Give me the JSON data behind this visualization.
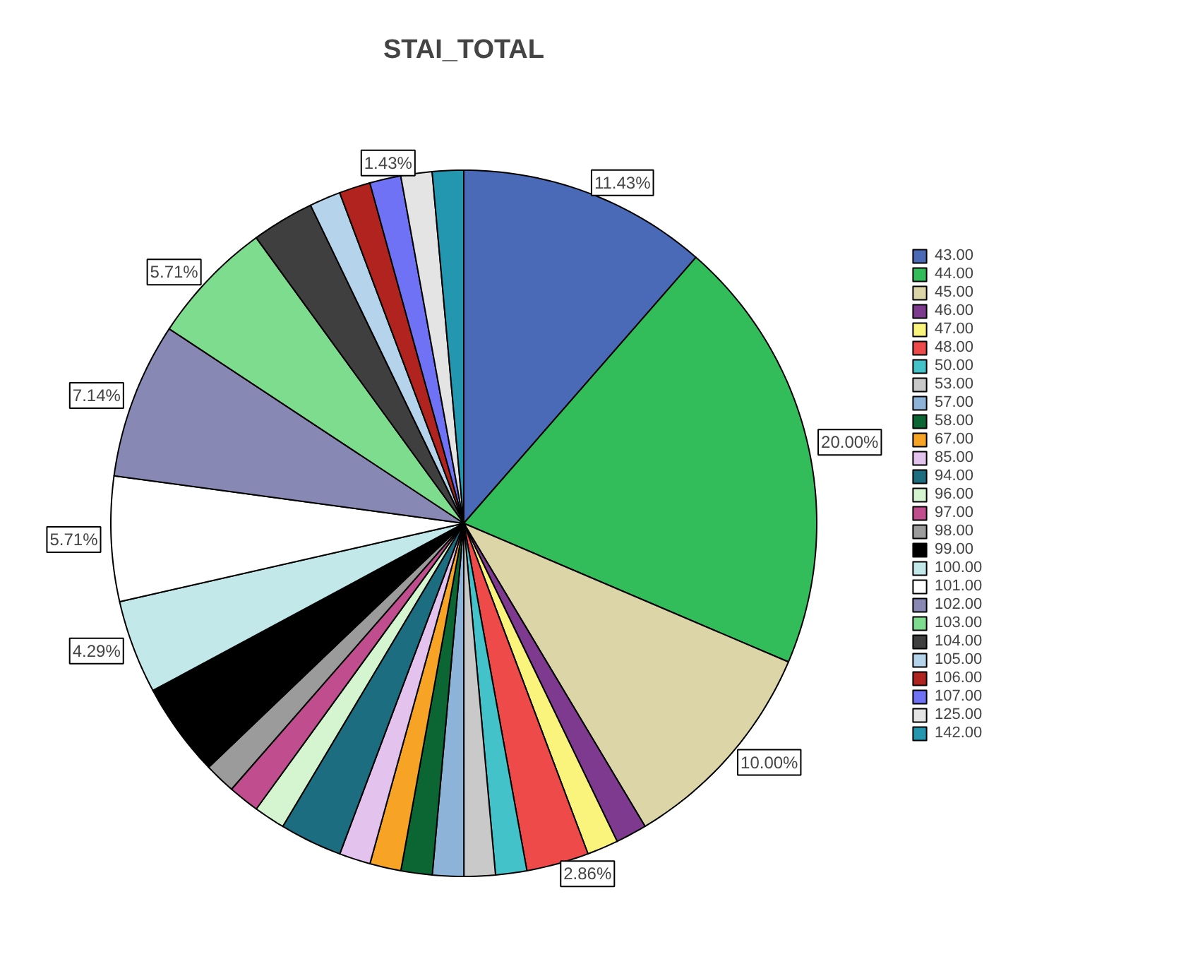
{
  "chart_data": {
    "type": "pie",
    "title": "STAI_TOTAL",
    "categories": [
      "43.00",
      "44.00",
      "45.00",
      "46.00",
      "47.00",
      "48.00",
      "50.00",
      "53.00",
      "57.00",
      "58.00",
      "67.00",
      "85.00",
      "94.00",
      "96.00",
      "97.00",
      "98.00",
      "99.00",
      "100.00",
      "101.00",
      "102.00",
      "103.00",
      "104.00",
      "105.00",
      "106.00",
      "107.00",
      "125.00",
      "142.00"
    ],
    "values": [
      11.43,
      20.0,
      10.0,
      1.43,
      1.43,
      2.86,
      1.43,
      1.43,
      1.43,
      1.43,
      1.43,
      1.43,
      2.86,
      1.43,
      1.43,
      1.43,
      4.29,
      4.29,
      5.71,
      7.14,
      5.71,
      2.86,
      1.43,
      1.43,
      1.43,
      1.43,
      1.43
    ],
    "value_labels": [
      "11.43%",
      "20.00%",
      "10.00%",
      null,
      null,
      "2.86%",
      null,
      null,
      null,
      null,
      null,
      null,
      null,
      null,
      null,
      null,
      null,
      "4.29%",
      "5.71%",
      "7.14%",
      "5.71%",
      null,
      null,
      null,
      null,
      "1.43%",
      null
    ],
    "colors": [
      "#4a6ab7",
      "#33bd5a",
      "#dcd5a8",
      "#7d3a8f",
      "#fbf47c",
      "#ef4a4a",
      "#43c2c9",
      "#c9c9c9",
      "#8db3d9",
      "#0b6633",
      "#f7a325",
      "#e3c2ee",
      "#1d6d80",
      "#d4f5d0",
      "#c04d8d",
      "#9b9b9b",
      "#000000",
      "#c2e8ea",
      "#ffffff",
      "#8888b5",
      "#7ddc8e",
      "#3f3f3f",
      "#b6d3ec",
      "#b1231f",
      "#6f72f5",
      "#e4e4e4",
      "#2396b0"
    ],
    "legend": "top right"
  }
}
